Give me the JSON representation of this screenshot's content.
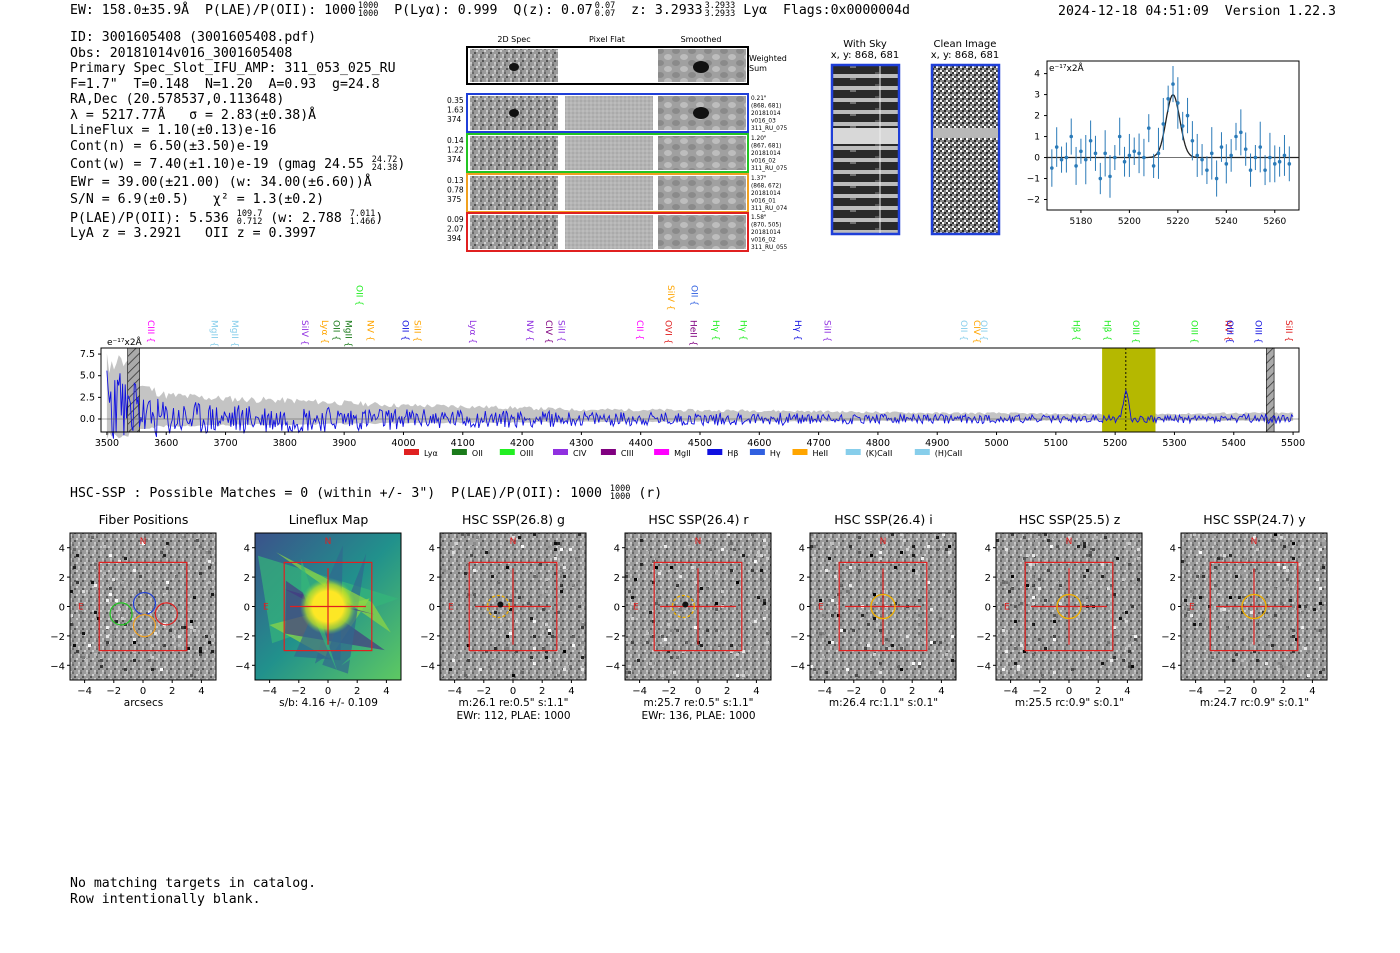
{
  "header": {
    "ew": "EW: 158.0±35.9Å",
    "plae": "P(LAE)/P(OII): 1000",
    "plae_sup": "1000",
    "plae_sub": "1000",
    "plya": "P(Lyα): 0.999",
    "qz": "Q(z): 0.07",
    "qz_sup": "0.07",
    "qz_sub": "0.07",
    "z": "z: 3.2933",
    "z_sup": "3.2933",
    "z_sub": "3.2933",
    "z_line": "Lyα",
    "flags": "Flags:0x0000004d",
    "datetime": "2024-12-18 04:51:09",
    "version": "Version 1.22.3"
  },
  "info": {
    "id": "ID: 3001605408 (3001605408.pdf)",
    "obs": "Obs: 20181014v016_3001605408",
    "primary": "Primary Spec_Slot_IFU_AMP: 311_053_025_RU",
    "fit": "F=1.7\"  T=0.148  N=1.20  A=0.93  g=24.8",
    "radec": "RA,Dec (20.578537,0.113648)",
    "lambda": "λ = 5217.77Å   σ = 2.83(±0.38)Å",
    "lineflux": "LineFlux = 1.10(±0.13)e-16",
    "contn": "Cont(n) = 6.50(±3.50)e-19",
    "contw": "Cont(w) = 7.40(±1.10)e-19 (gmag 24.55",
    "contw_sup": "24.72",
    "contw_sub": "24.38",
    "contw_end": ")",
    "ewr": "EWr = 39.00(±21.00) (w: 34.00(±6.60))Å",
    "sn": "S/N = 6.9(±0.5)   χ² = 1.3(±0.2)",
    "plae": "P(LAE)/P(OII): 5.536",
    "plae_sup": "109.7",
    "plae_sub": "0.712",
    "plae_w": "(w: 2.788",
    "plae_w_sup": "7.011",
    "plae_w_sub": "1.466",
    "plae_w_end": ")",
    "lyaz": "LyA z = 3.2921   OII z = 0.3997"
  },
  "cutouts": {
    "col_2d": "2D Spec",
    "col_flat": "Pixel Flat",
    "col_smooth": "Smoothed",
    "weighted": "Weighted Sum",
    "rows": [
      {
        "left": [
          "0.35",
          "1.63",
          "374"
        ],
        "right": [
          "0.21\"",
          "(868, 681)",
          "20181014",
          "v016_03",
          "311_RU_075"
        ],
        "color": "#1f3fd8"
      },
      {
        "left": [
          "0.14",
          "1.22",
          "374"
        ],
        "right": [
          "1.20\"",
          "(867, 681)",
          "20181014",
          "v016_02",
          "311_RU_075"
        ],
        "color": "#22c422"
      },
      {
        "left": [
          "0.13",
          "0.78",
          "375"
        ],
        "right": [
          "1.37\"",
          "(868, 672)",
          "20181014",
          "v016_01",
          "311_RU_074"
        ],
        "color": "#f0a020"
      },
      {
        "left": [
          "0.09",
          "2.07",
          "394"
        ],
        "right": [
          "1.58\"",
          "(870, 505)",
          "20181014",
          "v016_02",
          "311_RU_055"
        ],
        "color": "#e02020"
      }
    ],
    "with_sky": "With Sky",
    "with_sky_xy": "x, y: 868, 681",
    "clean": "Clean Image",
    "clean_xy": "x, y: 868, 681"
  },
  "fit_plot": {
    "ylabel": "e⁻¹⁷x2Å",
    "xticks": [
      "5180",
      "5200",
      "5220",
      "5240",
      "5260"
    ],
    "yticks": [
      "4",
      "3",
      "2",
      "1",
      "0",
      "−1",
      "−2"
    ]
  },
  "spectrum": {
    "ylabel": "e⁻¹⁷x2Å",
    "yticks": [
      "7.5",
      "5.0",
      "2.5",
      "0.0"
    ],
    "xticks": [
      "3500",
      "3600",
      "3700",
      "3800",
      "3900",
      "4000",
      "4100",
      "4200",
      "4300",
      "4400",
      "4500",
      "4600",
      "4700",
      "4800",
      "4900",
      "5000",
      "5100",
      "5200",
      "5300",
      "5400",
      "5500"
    ],
    "legend": [
      {
        "label": "Lyα",
        "color": "#e02020"
      },
      {
        "label": "OII",
        "color": "#1a7a1a"
      },
      {
        "label": "OIII",
        "color": "#22ee22"
      },
      {
        "label": "CIV",
        "color": "#9030e0"
      },
      {
        "label": "CIII",
        "color": "#800080"
      },
      {
        "label": "MgII",
        "color": "#ff00ff"
      },
      {
        "label": "Hβ",
        "color": "#1010e0"
      },
      {
        "label": "Hγ",
        "color": "#3060e0"
      },
      {
        "label": "HeII",
        "color": "#ffa500"
      },
      {
        "label": "(K)CaII",
        "color": "#87ceeb"
      },
      {
        "label": "(H)CaII",
        "color": "#87ceeb"
      }
    ],
    "lines": [
      {
        "name": "CIII",
        "color": "#ff00ff",
        "x": 3569
      },
      {
        "name": "MgII",
        "color": "#87ceeb",
        "x": 3676
      },
      {
        "name": "MgII",
        "color": "#87ceeb",
        "x": 3711
      },
      {
        "name": "SiIV",
        "color": "#9030e0",
        "x": 3829
      },
      {
        "name": "Lyα",
        "color": "#ffa500",
        "x": 3863
      },
      {
        "name": "OII",
        "color": "#1a7a1a",
        "x": 3882
      },
      {
        "name": "MgII",
        "color": "#1a7a1a",
        "x": 3902
      },
      {
        "name": "OII",
        "color": "#22ee22",
        "x": 3921
      },
      {
        "name": "NV",
        "color": "#ffa500",
        "x": 3939
      },
      {
        "name": "OII",
        "color": "#1010e0",
        "x": 3998
      },
      {
        "name": "SiII",
        "color": "#ffa500",
        "x": 4019
      },
      {
        "name": "Lyα",
        "color": "#9030e0",
        "x": 4112
      },
      {
        "name": "NV",
        "color": "#9030e0",
        "x": 4208
      },
      {
        "name": "CIV",
        "color": "#800080",
        "x": 4240
      },
      {
        "name": "SiII",
        "color": "#9030e0",
        "x": 4261
      },
      {
        "name": "CII",
        "color": "#ff00ff",
        "x": 4394
      },
      {
        "name": "OVI",
        "color": "#e02020",
        "x": 4442
      },
      {
        "name": "SiIV",
        "color": "#ffa500",
        "x": 4446
      },
      {
        "name": "HeII",
        "color": "#800080",
        "x": 4484
      },
      {
        "name": "OII",
        "color": "#3060e0",
        "x": 4486
      },
      {
        "name": "Hγ",
        "color": "#22ee22",
        "x": 4522
      },
      {
        "name": "Hγ",
        "color": "#22ee22",
        "x": 4568
      },
      {
        "name": "Hγ",
        "color": "#1010e0",
        "x": 4660
      },
      {
        "name": "SiII",
        "color": "#9030e0",
        "x": 4710
      },
      {
        "name": "OII",
        "color": "#87ceeb",
        "x": 4940
      },
      {
        "name": "CIV",
        "color": "#ffa500",
        "x": 4962
      },
      {
        "name": "OII",
        "color": "#87ceeb",
        "x": 4974
      },
      {
        "name": "Hβ",
        "color": "#22ee22",
        "x": 5130
      },
      {
        "name": "Hβ",
        "color": "#22ee22",
        "x": 5182
      },
      {
        "name": "OIII",
        "color": "#22ee22",
        "x": 5230
      },
      {
        "name": "OIII",
        "color": "#22ee22",
        "x": 5329
      },
      {
        "name": "NV",
        "color": "#e02020",
        "x": 5386
      },
      {
        "name": "OIII",
        "color": "#1010e0",
        "x": 5389
      },
      {
        "name": "OIII",
        "color": "#1010e0",
        "x": 5437
      },
      {
        "name": "SiII",
        "color": "#e02020",
        "x": 5488
      }
    ]
  },
  "hsc": {
    "title": "HSC-SSP : Possible Matches = 0 (within +/- 3\")  P(LAE)/P(OII): 1000",
    "title_sup": "1000",
    "title_sub": "1000",
    "title_end": "(r)",
    "xticks": [
      "−4",
      "−2",
      "0",
      "2",
      "4"
    ],
    "yticks": [
      "4",
      "2",
      "0",
      "−2",
      "−4"
    ],
    "stamps": [
      {
        "title": "Fiber Positions",
        "label1": "arcsecs",
        "label2": ""
      },
      {
        "title": "Lineflux Map",
        "label1": "s/b: 4.16 +/- 0.109",
        "label2": ""
      },
      {
        "title": "HSC SSP(26.8) g",
        "label1": "m:26.1   re:0.5\"  s:1.1\"",
        "label2": "EWr: 112, PLAE: 1000"
      },
      {
        "title": "HSC SSP(26.4) r",
        "label1": "m:25.7   re:0.5\"  s:1.1\"",
        "label2": "EWr: 136, PLAE: 1000"
      },
      {
        "title": "HSC SSP(26.4) i",
        "label1": "m:26.4 rc:1.1\"  s:0.1\"",
        "label2": ""
      },
      {
        "title": "HSC SSP(25.5) z",
        "label1": "m:25.5 rc:0.9\"  s:0.1\"",
        "label2": ""
      },
      {
        "title": "HSC SSP(24.7) y",
        "label1": "m:24.7 rc:0.9\"  s:0.1\"",
        "label2": ""
      }
    ],
    "compass_n": "N",
    "compass_e": "E"
  },
  "footer": {
    "line1": "No matching targets in catalog.",
    "line2": "Row intentionally blank."
  },
  "chart_data": [
    {
      "type": "scatter",
      "title": "",
      "xlabel": "",
      "ylabel": "e⁻¹⁷x2Å",
      "xlim": [
        5166,
        5270
      ],
      "ylim": [
        -2.5,
        4.6
      ],
      "x": [
        5168,
        5170,
        5172,
        5174,
        5176,
        5178,
        5180,
        5182,
        5184,
        5186,
        5188,
        5190,
        5192,
        5194,
        5196,
        5198,
        5200,
        5202,
        5204,
        5206,
        5208,
        5210,
        5212,
        5214,
        5216,
        5218,
        5220,
        5222,
        5224,
        5226,
        5228,
        5230,
        5232,
        5234,
        5236,
        5238,
        5240,
        5242,
        5244,
        5246,
        5248,
        5250,
        5252,
        5254,
        5256,
        5258,
        5260,
        5262,
        5264,
        5266
      ],
      "values": [
        -0.5,
        0.5,
        -0.1,
        0.0,
        1.0,
        -0.4,
        0.3,
        -0.1,
        0.8,
        0.2,
        -1.0,
        0.2,
        -0.9,
        0.0,
        1.0,
        -0.2,
        0.1,
        0.3,
        0.2,
        0.0,
        1.4,
        -0.4,
        0.2,
        1.6,
        2.8,
        3.5,
        2.6,
        1.5,
        2.0,
        0.8,
        0.1,
        -0.1,
        -0.6,
        0.2,
        -1.0,
        0.5,
        -0.3,
        0.1,
        1.0,
        1.2,
        0.4,
        -0.6,
        0.0,
        0.5,
        -0.6,
        0.0,
        -0.3,
        -0.2,
        0.1,
        -0.3
      ],
      "errors": 0.9,
      "model": "gaussian",
      "model_center": 5218,
      "model_sigma": 2.8,
      "model_amp": 3.0,
      "xticks": [
        5180,
        5200,
        5220,
        5240,
        5260
      ],
      "yticks": [
        -2,
        -1,
        0,
        1,
        2,
        3,
        4
      ]
    },
    {
      "type": "line",
      "title": "",
      "xlabel": "",
      "ylabel": "e⁻¹⁷x2Å",
      "xlim": [
        3490,
        5510
      ],
      "ylim": [
        -1.5,
        8.2
      ],
      "xticks": [
        3500,
        3600,
        3700,
        3800,
        3900,
        4000,
        4100,
        4200,
        4300,
        4400,
        4500,
        4600,
        4700,
        4800,
        4900,
        5000,
        5100,
        5200,
        5300,
        5400,
        5500
      ],
      "yticks": [
        0,
        2.5,
        5,
        7.5
      ],
      "emission_peak": {
        "x": 5218,
        "y": 3.5
      },
      "highlight_band": [
        5178,
        5268
      ],
      "marker_line": 5218,
      "excluded_bands": [
        [
          3535,
          3555
        ],
        [
          5455,
          5468
        ]
      ],
      "series_description_values_sampled_every_100A": {
        "x": [
          3500,
          3600,
          3700,
          3800,
          3900,
          4000,
          4100,
          4200,
          4300,
          4400,
          4500,
          4600,
          4700,
          4800,
          4900,
          5000,
          5100,
          5200,
          5300,
          5400,
          5500
        ],
        "noise_envelope": [
          5.5,
          2.8,
          2.4,
          2.2,
          1.9,
          1.6,
          1.5,
          1.3,
          1.1,
          1.1,
          1.0,
          1.0,
          0.9,
          0.8,
          0.7,
          0.7,
          0.6,
          0.6,
          0.6,
          0.7,
          0.7
        ]
      }
    }
  ]
}
